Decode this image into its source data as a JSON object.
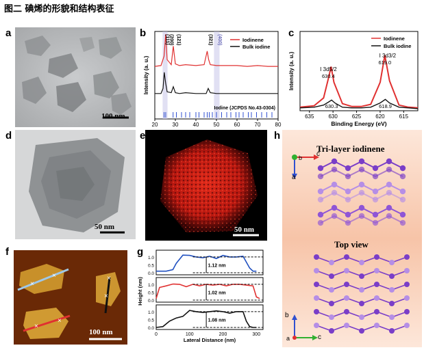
{
  "figure": {
    "title": "图二 碘烯的形貌和结构表征",
    "panels": {
      "a": {
        "label": "a",
        "scale_bar": "100 nm"
      },
      "b": {
        "label": "b"
      },
      "c": {
        "label": "c"
      },
      "d": {
        "label": "d",
        "scale_bar": "50 nm"
      },
      "e": {
        "label": "e",
        "scale_bar": "50 nm"
      },
      "f": {
        "label": "f",
        "scale_bar": "100 nm"
      },
      "g": {
        "label": "g"
      },
      "h": {
        "label": "h",
        "title_top": "Tri-layer iodinene",
        "title_bottom": "Top view",
        "axes_top": {
          "x": "c",
          "y": "a",
          "z": "b"
        },
        "axes_bottom": {
          "x": "c",
          "y": "b",
          "z": "a"
        }
      }
    }
  },
  "chart_data": [
    {
      "panel": "b",
      "type": "line",
      "title": "",
      "xlabel": "2 Theta (degree)",
      "ylabel": "Intensity (a. u.)",
      "xlim": [
        20,
        80
      ],
      "xticks": [
        20,
        30,
        40,
        50,
        60,
        70,
        80
      ],
      "legend": [
        "Iodinene",
        "Bulk iodine"
      ],
      "peak_labels": [
        "(111)",
        "(200)",
        "(121)",
        "(321)",
        "(400)"
      ],
      "reference_label": "Iodine (JCPDS No.43-0304)",
      "series": [
        {
          "name": "Iodinene",
          "color": "#e03030",
          "x": [
            20,
            23,
            24.5,
            25.3,
            26,
            28,
            29,
            30,
            32,
            35,
            40,
            44,
            45.5,
            46.2,
            47,
            50,
            55,
            60,
            65,
            70,
            75,
            80
          ],
          "y": [
            0.62,
            0.63,
            0.74,
            1.0,
            0.7,
            0.64,
            0.86,
            0.65,
            0.63,
            0.64,
            0.63,
            0.64,
            0.8,
            0.7,
            0.64,
            0.63,
            0.63,
            0.63,
            0.62,
            0.63,
            0.62,
            0.62
          ]
        },
        {
          "name": "Bulk iodine",
          "color": "#111111",
          "x": [
            20,
            23,
            24,
            24.6,
            25.3,
            26,
            28,
            29,
            30,
            32,
            35,
            40,
            45,
            46,
            47,
            50,
            55,
            60,
            65,
            70,
            75,
            80
          ],
          "y": [
            0.3,
            0.3,
            0.36,
            0.55,
            0.42,
            0.32,
            0.31,
            0.38,
            0.31,
            0.3,
            0.31,
            0.3,
            0.3,
            0.36,
            0.31,
            0.3,
            0.3,
            0.3,
            0.3,
            0.3,
            0.3,
            0.3
          ]
        }
      ],
      "reference_peaks": [
        24.5,
        25.3,
        28.9,
        30.5,
        33,
        35,
        37,
        40,
        41.5,
        44,
        45.5,
        46.5,
        48,
        50,
        52.5,
        55,
        57,
        59.5,
        61,
        63,
        65.5,
        67,
        69.5,
        72,
        74.5,
        77
      ]
    },
    {
      "panel": "c",
      "type": "line",
      "title": "",
      "xlabel": "Binding Energy (eV)",
      "ylabel": "Intensity (a. u.)",
      "xlim": [
        637,
        612
      ],
      "xticks": [
        635,
        630,
        625,
        620,
        615
      ],
      "legend": [
        "Iodinene",
        "Bulk iodine"
      ],
      "annotations": [
        {
          "text": "630.4",
          "sub": "I 3d5/2",
          "x": 630.4
        },
        {
          "text": "619.0",
          "sub": "I 3d3/2",
          "x": 619.0
        },
        {
          "text": "630.3",
          "x": 630.3
        },
        {
          "text": "618.9",
          "x": 618.9
        }
      ],
      "series": [
        {
          "name": "Iodinene",
          "color": "#e03030",
          "x": [
            637,
            634,
            632,
            631,
            630.4,
            629.8,
            628,
            626,
            624,
            622,
            620,
            619.0,
            618,
            616,
            614,
            612
          ],
          "y": [
            0.05,
            0.07,
            0.18,
            0.45,
            0.62,
            0.4,
            0.1,
            0.06,
            0.06,
            0.09,
            0.4,
            0.78,
            0.42,
            0.08,
            0.05,
            0.04
          ]
        },
        {
          "name": "Bulk iodine",
          "color": "#111111",
          "x": [
            637,
            634,
            632,
            631,
            630.3,
            629.6,
            628,
            626,
            624,
            622,
            620,
            618.9,
            618,
            616,
            614,
            612
          ],
          "y": [
            0.04,
            0.05,
            0.08,
            0.12,
            0.15,
            0.11,
            0.05,
            0.04,
            0.04,
            0.05,
            0.11,
            0.16,
            0.11,
            0.05,
            0.04,
            0.03
          ]
        }
      ]
    },
    {
      "panel": "g",
      "type": "line",
      "title": "",
      "xlabel": "Lateral Distance (nm)",
      "ylabel": "Height (nm)",
      "xticks": [
        0,
        100,
        200,
        300
      ],
      "yticks": [
        0.0,
        0.5,
        1.0
      ],
      "subplots": [
        {
          "color": "#2050c0",
          "step": "1.12 nm",
          "x": [
            0,
            30,
            50,
            60,
            80,
            100,
            120,
            140,
            160,
            180,
            200,
            220,
            240,
            260,
            280,
            290,
            300
          ],
          "y": [
            0.1,
            0.1,
            0.2,
            0.6,
            1.12,
            1.1,
            1.0,
            0.95,
            1.05,
            0.9,
            1.1,
            1.0,
            1.0,
            1.05,
            0.3,
            0.1,
            0.1
          ]
        },
        {
          "color": "#e03030",
          "step": "1.02 nm",
          "x": [
            0,
            10,
            30,
            50,
            70,
            90,
            110,
            130,
            150,
            170,
            190,
            210,
            230,
            250,
            270,
            290,
            300,
            310
          ],
          "y": [
            0.1,
            0.8,
            0.9,
            1.02,
            1.0,
            0.85,
            1.0,
            0.9,
            1.0,
            0.95,
            1.0,
            0.9,
            1.0,
            1.0,
            0.95,
            0.9,
            0.2,
            0.1
          ]
        },
        {
          "color": "#111111",
          "step": "1.08 nm",
          "x": [
            0,
            20,
            40,
            60,
            80,
            100,
            120,
            140,
            160,
            180,
            200,
            220,
            240,
            260,
            270,
            280,
            290,
            300
          ],
          "y": [
            0.0,
            0.05,
            0.4,
            0.6,
            0.7,
            1.08,
            1.0,
            0.95,
            1.0,
            1.05,
            1.0,
            0.9,
            1.0,
            1.0,
            0.4,
            0.05,
            0.0,
            0.0
          ]
        }
      ]
    }
  ]
}
